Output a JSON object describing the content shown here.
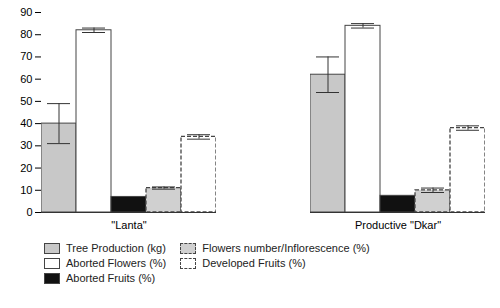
{
  "chart_data": {
    "type": "bar",
    "categories": [
      "\"Lanta\"",
      "Productive \"Dkar\""
    ],
    "series": [
      {
        "name": "Tree Production (kg)",
        "values": [
          40,
          62
        ],
        "errors": [
          9,
          8
        ],
        "color": "#c8c8c8",
        "line_style": "solid"
      },
      {
        "name": "Aborted Flowers (%)",
        "values": [
          82,
          84
        ],
        "errors": [
          1,
          1
        ],
        "color": "#ffffff",
        "line_style": "solid"
      },
      {
        "name": "Aborted Fruits (%)",
        "values": [
          7,
          7.5
        ],
        "errors": [
          0,
          0
        ],
        "color": "#111111",
        "line_style": "solid"
      },
      {
        "name": "Flowers number/Inflorescence (%)",
        "values": [
          11,
          10
        ],
        "errors": [
          0.5,
          1
        ],
        "color": "#d0d0d0",
        "line_style": "dashed"
      },
      {
        "name": "Developed Fruits (%)",
        "values": [
          34,
          38
        ],
        "errors": [
          1,
          1
        ],
        "color": "#ffffff",
        "line_style": "dashed"
      }
    ],
    "ylim": [
      0,
      90
    ],
    "yticks": [
      0,
      10,
      20,
      30,
      40,
      50,
      60,
      70,
      80,
      90
    ],
    "grid": false,
    "legend": "bottom"
  }
}
